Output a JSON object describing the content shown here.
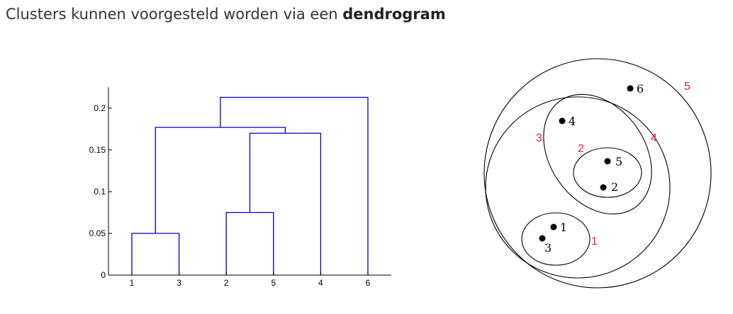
{
  "heading": {
    "text": "Clusters kunnen voorgesteld worden via een ",
    "bold": "dendrogram"
  },
  "dendrogram": {
    "y_ticks": [
      {
        "value": 0,
        "label": "0"
      },
      {
        "value": 0.05,
        "label": "0.05"
      },
      {
        "value": 0.1,
        "label": "0.1"
      },
      {
        "value": 0.15,
        "label": "0.15"
      },
      {
        "value": 0.2,
        "label": "0.2"
      }
    ],
    "leaves": [
      "1",
      "3",
      "2",
      "5",
      "4",
      "6"
    ],
    "merges": [
      {
        "left": "1",
        "right": "3",
        "height": 0.05
      },
      {
        "left": "2",
        "right": "5",
        "height": 0.075
      },
      {
        "left": "c2",
        "right": "4",
        "height": 0.17
      },
      {
        "left": "c1",
        "right": "c3",
        "height": 0.177
      },
      {
        "left": "c4",
        "right": "6",
        "height": 0.213
      }
    ],
    "line_color": "#0000cc"
  },
  "nested_diagram": {
    "points": [
      {
        "label": "1"
      },
      {
        "label": "2"
      },
      {
        "label": "3"
      },
      {
        "label": "4"
      },
      {
        "label": "5"
      },
      {
        "label": "6"
      }
    ],
    "cluster_labels": [
      "1",
      "2",
      "3",
      "4",
      "5"
    ],
    "cluster_label_color": "#e8202a"
  }
}
